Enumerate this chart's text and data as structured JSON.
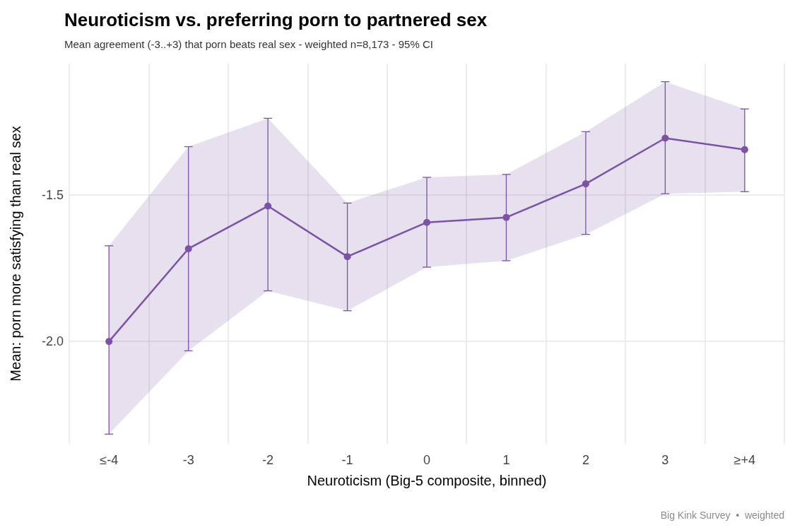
{
  "chart_data": {
    "type": "line",
    "title": "Neuroticism vs. preferring porn to partnered sex",
    "subtitle": "Mean agreement (-3..+3) that porn beats real sex - weighted n=8,173 - 95% CI",
    "xlabel": "Neuroticism (Big-5 composite, binned)",
    "ylabel": "Mean: porn more satisfying than real sex",
    "annotations": [
      "Big Kink Survey  •  weighted"
    ],
    "categories": [
      "≤-4",
      "-3",
      "-2",
      "-1",
      "0",
      "1",
      "2",
      "3",
      "≥+4"
    ],
    "series": [
      {
        "color": "#7b52a8",
        "values": [
          -2.0,
          -1.683,
          -1.537,
          -1.71,
          -1.593,
          -1.576,
          -1.461,
          -1.305,
          -1.344
        ],
        "lower": [
          -2.317,
          -2.032,
          -1.827,
          -1.895,
          -1.746,
          -1.724,
          -1.634,
          -1.495,
          -1.488
        ],
        "upper": [
          -1.673,
          -1.334,
          -1.237,
          -1.527,
          -1.439,
          -1.429,
          -1.283,
          -1.112,
          -1.205
        ],
        "errors": [
          [
            -2.317,
            -1.673
          ],
          [
            -2.032,
            -1.334
          ],
          [
            -1.827,
            -1.237
          ],
          [
            -1.895,
            -1.527
          ],
          [
            -1.746,
            -1.439
          ],
          [
            -1.724,
            -1.429
          ],
          [
            -1.634,
            -1.283
          ],
          [
            -1.495,
            -1.112
          ],
          [
            -1.488,
            -1.205
          ]
        ]
      }
    ],
    "ylim": [
      -2.35,
      -1.05
    ],
    "yticks": [
      {
        "value": -2,
        "label": "-2.0"
      },
      {
        "value": -1.5,
        "label": "-1.5"
      }
    ],
    "grid": true,
    "marker": "circle",
    "line_style": "solid"
  }
}
